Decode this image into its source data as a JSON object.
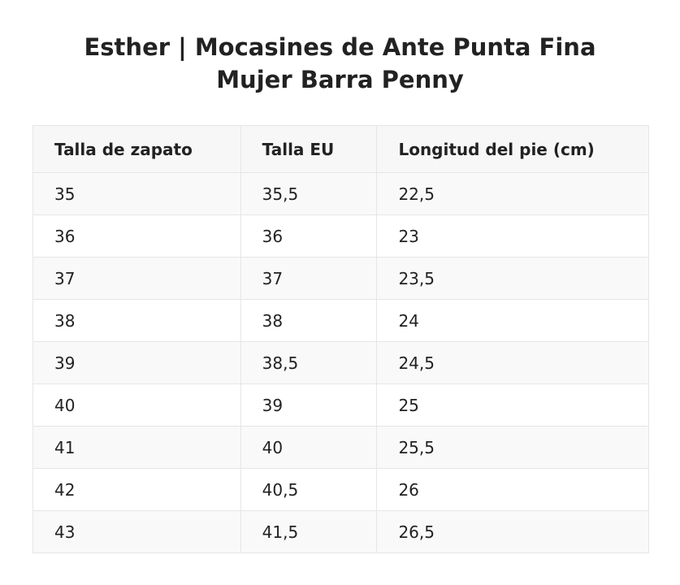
{
  "header": {
    "title": "Esther | Mocasines de Ante Punta Fina Mujer Barra Penny"
  },
  "table": {
    "columns": [
      "Talla de zapato",
      "Talla EU",
      "Longitud del pie (cm)"
    ],
    "rows": [
      [
        "35",
        "35,5",
        "22,5"
      ],
      [
        "36",
        "36",
        "23"
      ],
      [
        "37",
        "37",
        "23,5"
      ],
      [
        "38",
        "38",
        "24"
      ],
      [
        "39",
        "38,5",
        "24,5"
      ],
      [
        "40",
        "39",
        "25"
      ],
      [
        "41",
        "40",
        "25,5"
      ],
      [
        "42",
        "40,5",
        "26"
      ],
      [
        "43",
        "41,5",
        "26,5"
      ]
    ]
  }
}
